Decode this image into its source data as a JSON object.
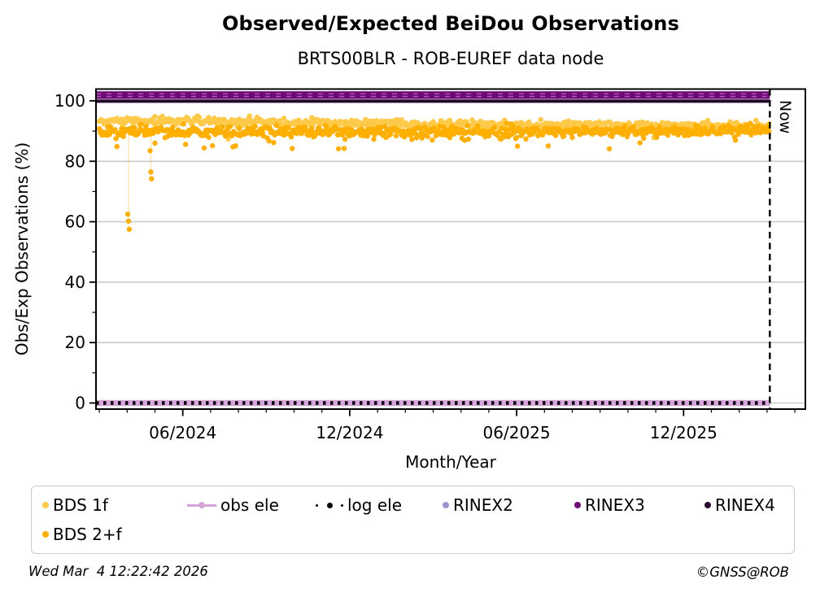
{
  "title": "Observed/Expected BeiDou Observations",
  "subtitle": "BRTS00BLR - ROB-EUREF data node",
  "footer": {
    "timestamp": "Wed Mar  4 12:22:42 2026",
    "copyright": "©GNSS@ROB"
  },
  "colors": {
    "bds_1f": "#FFC94A",
    "bds_2f": "#FFAF00",
    "obs_ele": "#D8A5DB",
    "log_ele": "#000000",
    "rinex2": "#9A93CC",
    "rinex3": "#6E0B75",
    "rinex3_inner_dash": "#C77BD0",
    "rinex4": "#22052B",
    "grid": "#CBCBCB",
    "axis": "#000000"
  },
  "legend": {
    "items": [
      {
        "label": "BDS 1f",
        "marker": "dot",
        "color": "#FFC94A"
      },
      {
        "label": "obs ele",
        "marker": "line-dot",
        "color": "#D8A5DB"
      },
      {
        "label": "log ele",
        "marker": "dotted-line-dot",
        "color": "#000000"
      },
      {
        "label": "RINEX2",
        "marker": "dot",
        "color": "#9A93CC"
      },
      {
        "label": "RINEX3",
        "marker": "dot",
        "color": "#6E0B75"
      },
      {
        "label": "RINEX4",
        "marker": "dot",
        "color": "#2A0A35"
      },
      {
        "label": "BDS 2+f",
        "marker": "dot",
        "color": "#FFAF00"
      }
    ]
  },
  "chart_data": {
    "type": "scatter",
    "title": "Observed/Expected BeiDou Observations",
    "subtitle": "BRTS00BLR - ROB-EUREF data node",
    "x_axis": {
      "label": "Month/Year",
      "unit": "months since 2024-01-01",
      "range": [
        1.88,
        27.4
      ],
      "major_ticks": [
        {
          "month": 5,
          "label": "06/2024"
        },
        {
          "month": 11,
          "label": "12/2024"
        },
        {
          "month": 17,
          "label": "06/2025"
        },
        {
          "month": 23,
          "label": "12/2025"
        }
      ],
      "minor_tick_months": [
        2,
        3,
        4,
        5,
        6,
        7,
        8,
        9,
        10,
        11,
        12,
        13,
        14,
        15,
        16,
        17,
        18,
        19,
        20,
        21,
        22,
        23,
        24,
        25,
        26,
        27
      ]
    },
    "y_axis": {
      "label": "Obs/Exp Observations (%)",
      "range": [
        -2,
        103.9
      ],
      "major_ticks": [
        0,
        20,
        40,
        60,
        80,
        100
      ],
      "minor_ticks": [
        10,
        30,
        50,
        70,
        90
      ],
      "gridline_values": [
        0,
        20,
        40,
        60,
        80
      ]
    },
    "now_line": {
      "month": 26.1,
      "label": "Now",
      "style": "dashed",
      "date_shown_in_footer": "Wed Mar  4 12:22:42 2026"
    },
    "reference_lines": [
      {
        "name": "obs ele",
        "value": 0,
        "half_width": 1.0,
        "color": "#D8A5DB",
        "extent_months": [
          1.88,
          26.1
        ]
      },
      {
        "name": "log ele",
        "value": 0,
        "style": "dotted",
        "color": "#000000",
        "extent_months": [
          1.88,
          26.1
        ]
      },
      {
        "name": "RINEX2",
        "value": 101.9,
        "half_width": 1.25,
        "color": "#9A93CC",
        "extent_months": [
          1.88,
          26.1
        ],
        "note": "hidden behind RINEX3"
      },
      {
        "name": "RINEX3",
        "value": 101.9,
        "half_width": 1.25,
        "color": "#6E0B75",
        "inner_dash_color": "#C77BD0",
        "extent_months": [
          1.88,
          26.1
        ]
      },
      {
        "name": "RINEX4",
        "value": 99.9,
        "half_width": 0.55,
        "color": "#22052B",
        "extent_months": [
          1.88,
          26.1
        ]
      }
    ],
    "series": [
      {
        "name": "BDS 1f",
        "color": "#FFC94A",
        "marker_radius": 3.2,
        "start_month": 2.0,
        "end_month": 26.05,
        "samples_per_month": 30,
        "trend": [
          [
            2.0,
            93.6
          ],
          [
            8.0,
            93.1
          ],
          [
            14.0,
            92.2
          ],
          [
            20.0,
            91.9
          ],
          [
            26.0,
            91.6
          ]
        ],
        "std": 0.7,
        "dip_probability": 0.025,
        "dip_range": [
          1.0,
          3.5
        ],
        "outliers": []
      },
      {
        "name": "BDS 2+f",
        "color": "#FFAF00",
        "marker_radius": 3.2,
        "start_month": 2.0,
        "end_month": 26.05,
        "samples_per_month": 30,
        "trend": [
          [
            2.0,
            89.9
          ],
          [
            8.0,
            90.0
          ],
          [
            14.0,
            89.6
          ],
          [
            20.0,
            90.0
          ],
          [
            26.0,
            90.2
          ]
        ],
        "std": 0.85,
        "dip_probability": 0.05,
        "dip_range": [
          1.5,
          6.5
        ],
        "noisy_periods": [
          {
            "from": 13.5,
            "to": 17.0,
            "std_scale": 1.4,
            "dip_scale": 1.6
          }
        ],
        "outliers": [
          {
            "month": 3.05,
            "values": [
              62.5,
              60.2,
              57.5
            ],
            "connect": true
          },
          {
            "month": 3.85,
            "values": [
              83.5,
              76.5,
              74.2
            ],
            "connect": true
          }
        ]
      }
    ]
  }
}
